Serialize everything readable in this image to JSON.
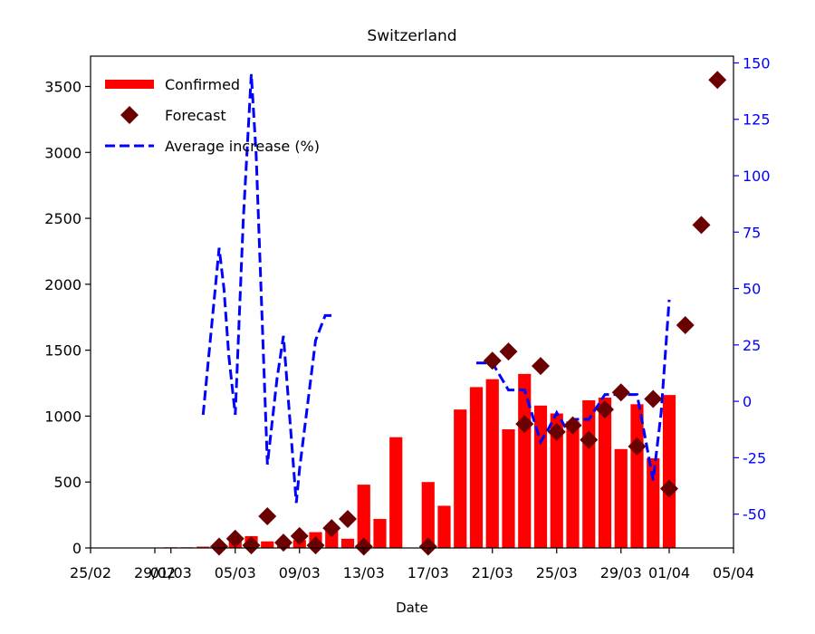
{
  "chart_data": {
    "type": "bar",
    "title": "Switzerland",
    "xlabel": "Date",
    "ylabel": "",
    "y2label": "",
    "x_start": "2020-02-25",
    "x_range": [
      0,
      40
    ],
    "ylim": [
      0,
      3730
    ],
    "y2lim": [
      -65,
      153
    ],
    "x_ticks": [
      {
        "x": 0,
        "label": "25/02"
      },
      {
        "x": 4,
        "label": "29/02"
      },
      {
        "x": 5,
        "label": "01/03"
      },
      {
        "x": 9,
        "label": "05/03"
      },
      {
        "x": 13,
        "label": "09/03"
      },
      {
        "x": 17,
        "label": "13/03"
      },
      {
        "x": 21,
        "label": "17/03"
      },
      {
        "x": 25,
        "label": "21/03"
      },
      {
        "x": 29,
        "label": "25/03"
      },
      {
        "x": 33,
        "label": "29/03"
      },
      {
        "x": 36,
        "label": "01/04"
      },
      {
        "x": 40,
        "label": "05/04"
      }
    ],
    "y_ticks": [
      0,
      500,
      1000,
      1500,
      2000,
      2500,
      3000,
      3500
    ],
    "y2_ticks": [
      -50,
      -25,
      0,
      25,
      50,
      75,
      100,
      125,
      150
    ],
    "legend": {
      "position": "top-left",
      "entries": [
        {
          "label": "Confirmed",
          "kind": "bar"
        },
        {
          "label": "Forecast",
          "kind": "marker"
        },
        {
          "label": "Average increase (%)",
          "kind": "line"
        }
      ]
    },
    "colors": {
      "confirmed": "#ff0000",
      "forecast": "#6b0000",
      "average_increase": "#0000ff",
      "right_axis": "#0000ff"
    },
    "series": [
      {
        "name": "Confirmed",
        "kind": "bar",
        "x": [
          5,
          6,
          7,
          8,
          9,
          10,
          11,
          12,
          13,
          14,
          15,
          16,
          17,
          18,
          19,
          20,
          21,
          22,
          23,
          24,
          25,
          26,
          27,
          28,
          29,
          30,
          31,
          32,
          33,
          34,
          35,
          36
        ],
        "values": [
          5,
          5,
          10,
          30,
          60,
          90,
          50,
          50,
          60,
          120,
          130,
          70,
          480,
          220,
          840,
          0,
          500,
          320,
          1050,
          1220,
          1280,
          900,
          1320,
          1080,
          1020,
          960,
          1120,
          1140,
          750,
          1090,
          680,
          1160
        ]
      },
      {
        "name": "Forecast",
        "kind": "marker",
        "x": [
          8,
          9,
          10,
          11,
          12,
          13,
          14,
          15,
          16,
          17,
          21,
          25,
          26,
          27,
          28,
          29,
          30,
          31,
          32,
          33,
          34,
          35,
          36,
          37,
          38,
          39
        ],
        "values": [
          10,
          70,
          20,
          240,
          40,
          90,
          20,
          150,
          220,
          10,
          10,
          1420,
          1490,
          940,
          1380,
          880,
          930,
          820,
          1050,
          1180,
          770,
          1130,
          450,
          1690,
          2450,
          3550
        ]
      },
      {
        "name": "Average increase (%)",
        "kind": "line",
        "segments": [
          {
            "x": [
              7,
              8,
              8.3,
              8.6,
              9,
              9.5,
              10,
              10.3,
              11,
              11.6,
              12,
              12.8,
              13,
              14,
              14.6,
              15
            ],
            "values": [
              -6,
              68,
              50,
              20,
              -6,
              80,
              145,
              110,
              -28,
              10,
              29,
              -45,
              -30,
              27,
              38,
              38
            ]
          },
          {
            "x": [
              24,
              25,
              26,
              26.5,
              27,
              28,
              28.5,
              29,
              29.5,
              30,
              31,
              32,
              33,
              34,
              35,
              35.5,
              36
            ],
            "values": [
              17,
              17,
              5,
              5,
              5,
              -18,
              -12,
              -5,
              -11,
              -8,
              -8,
              3,
              3,
              3,
              -35,
              -5,
              45
            ]
          }
        ]
      }
    ]
  }
}
